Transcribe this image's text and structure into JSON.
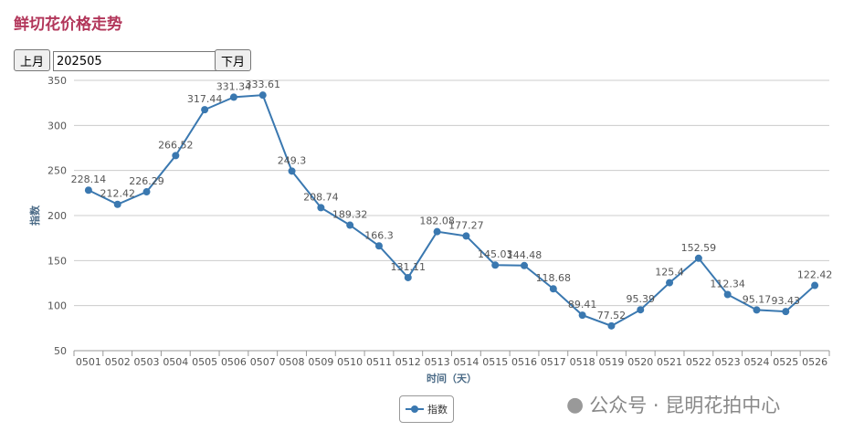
{
  "header": {
    "title": "鲜切花价格走势"
  },
  "controls": {
    "prev_label": "上月",
    "month_value": "202505",
    "next_label": "下月"
  },
  "watermark": "公众号 · 昆明花拍中心",
  "chart_data": {
    "type": "line",
    "xlabel": "时间（天）",
    "ylabel": "指数",
    "ylim": [
      50,
      350
    ],
    "yticks": [
      50,
      100,
      150,
      200,
      250,
      300,
      350
    ],
    "grid": true,
    "legend_position": "bottom",
    "color": "#3a78b0",
    "categories": [
      "0501",
      "0502",
      "0503",
      "0504",
      "0505",
      "0506",
      "0507",
      "0508",
      "0509",
      "0510",
      "0511",
      "0512",
      "0513",
      "0514",
      "0515",
      "0516",
      "0517",
      "0518",
      "0519",
      "0520",
      "0521",
      "0522",
      "0523",
      "0524",
      "0525",
      "0526"
    ],
    "series": [
      {
        "name": "指数",
        "values": [
          228.14,
          212.42,
          226.29,
          266.52,
          317.44,
          331.34,
          333.61,
          249.3,
          208.74,
          189.32,
          166.3,
          131.11,
          182.08,
          177.27,
          145.03,
          144.48,
          118.68,
          89.41,
          77.52,
          95.39,
          125.4,
          152.59,
          112.34,
          95.17,
          93.43,
          122.42
        ]
      }
    ]
  }
}
